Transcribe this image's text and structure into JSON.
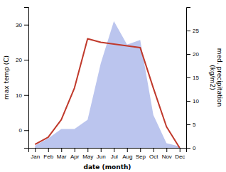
{
  "chart_data": {
    "type": "line",
    "xlabel": "date (month)",
    "ylabel": "max temp (C)",
    "y2label": "med. precipitation\n(kg/m2)",
    "categories": [
      "Jan",
      "Feb",
      "Mar",
      "Apr",
      "May",
      "Jun",
      "Jul",
      "Aug",
      "Sep",
      "Oct",
      "Nov",
      "Dec"
    ],
    "series": [
      {
        "type": "area",
        "axis": "y2",
        "color": "#bbc5ee",
        "values": [
          0.5,
          2,
          4,
          4,
          6,
          18,
          27,
          22,
          23,
          7,
          1,
          0.3
        ]
      },
      {
        "type": "line",
        "color": "#c0392b",
        "values": [
          -4,
          -2,
          3,
          12,
          26,
          25,
          24.5,
          24,
          23.5,
          12,
          1,
          -5
        ]
      }
    ],
    "ylim": [
      -5,
      35
    ],
    "yticks": [
      0,
      10,
      20,
      30
    ],
    "y2lim": [
      0,
      30
    ],
    "y2ticks": [
      0,
      5,
      10,
      15,
      20,
      25
    ],
    "grid": false
  }
}
